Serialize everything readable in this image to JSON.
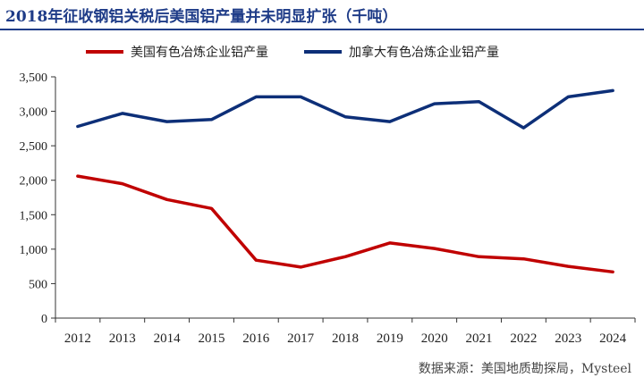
{
  "title": "2018年征收钢铝关税后美国铝产量并未明显扩张（千吨）",
  "source": "数据来源：美国地质勘探局，Mysteel",
  "chart_data": {
    "type": "line",
    "title": "2018年征收钢铝关税后美国铝产量并未明显扩张（千吨）",
    "x": [
      "2012",
      "2013",
      "2014",
      "2015",
      "2016",
      "2017",
      "2018",
      "2019",
      "2020",
      "2021",
      "2022",
      "2023",
      "2024"
    ],
    "ylim": [
      0,
      3500
    ],
    "yticks": [
      0,
      500,
      1000,
      1500,
      2000,
      2500,
      3000,
      3500
    ],
    "ytick_labels": [
      "0",
      "500",
      "1,000",
      "1,500",
      "2,000",
      "2,500",
      "3,000",
      "3,500"
    ],
    "grid": false,
    "legend": "top",
    "series": [
      {
        "name": "美国有色冶炼企业铝产量",
        "color": "#c00000",
        "values": [
          2060,
          1950,
          1720,
          1590,
          840,
          740,
          890,
          1090,
          1010,
          890,
          860,
          750,
          670
        ]
      },
      {
        "name": "加拿大有色冶炼企业铝产量",
        "color": "#0d2f78",
        "values": [
          2780,
          2970,
          2850,
          2880,
          3210,
          3210,
          2920,
          2850,
          3110,
          3140,
          2760,
          3210,
          3300
        ]
      }
    ]
  }
}
